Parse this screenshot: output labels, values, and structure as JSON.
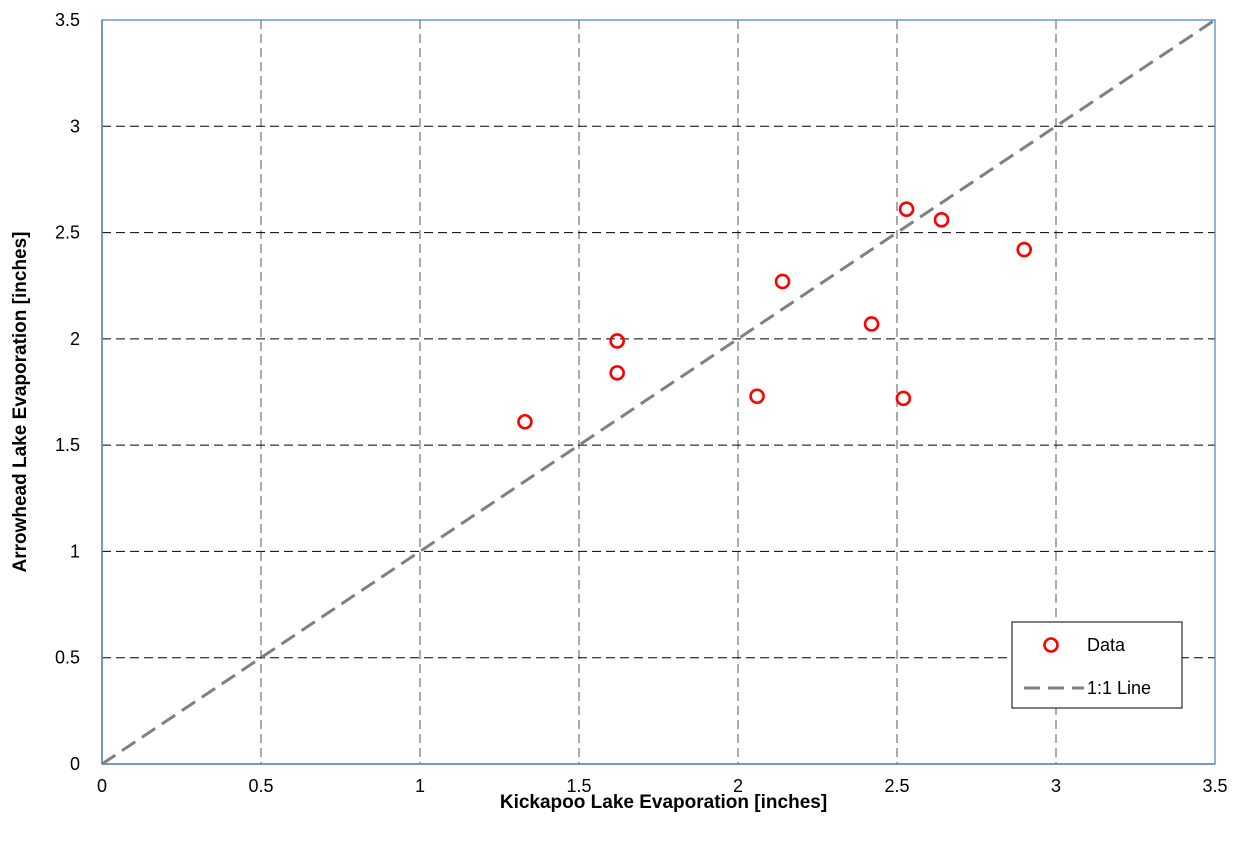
{
  "chart_data": {
    "type": "scatter",
    "title": "",
    "xlabel": "Kickapoo Lake Evaporation [inches]",
    "ylabel": "Arrowhead Lake Evaporation [inches]",
    "xlim": [
      0,
      3.5
    ],
    "ylim": [
      0,
      3.5
    ],
    "xticks": [
      "0",
      "0.5",
      "1",
      "1.5",
      "2",
      "2.5",
      "3",
      "3.5"
    ],
    "yticks": [
      "0",
      "0.5",
      "1",
      "1.5",
      "2",
      "2.5",
      "3",
      "3.5"
    ],
    "grid": true,
    "legend_position": "bottom-right",
    "series": [
      {
        "name": "Data",
        "kind": "scatter",
        "color": "#ff0000",
        "marker": "open-circle",
        "x": [
          1.33,
          1.62,
          1.62,
          2.06,
          2.14,
          2.42,
          2.52,
          2.53,
          2.64,
          2.9
        ],
        "y": [
          1.61,
          1.84,
          1.99,
          1.73,
          2.27,
          2.07,
          1.72,
          2.61,
          2.56,
          2.42
        ]
      },
      {
        "name": "1:1 Line",
        "kind": "line",
        "color": "#808080",
        "dash": "dashed",
        "x": [
          0,
          3.5
        ],
        "y": [
          0,
          3.5
        ]
      }
    ]
  }
}
